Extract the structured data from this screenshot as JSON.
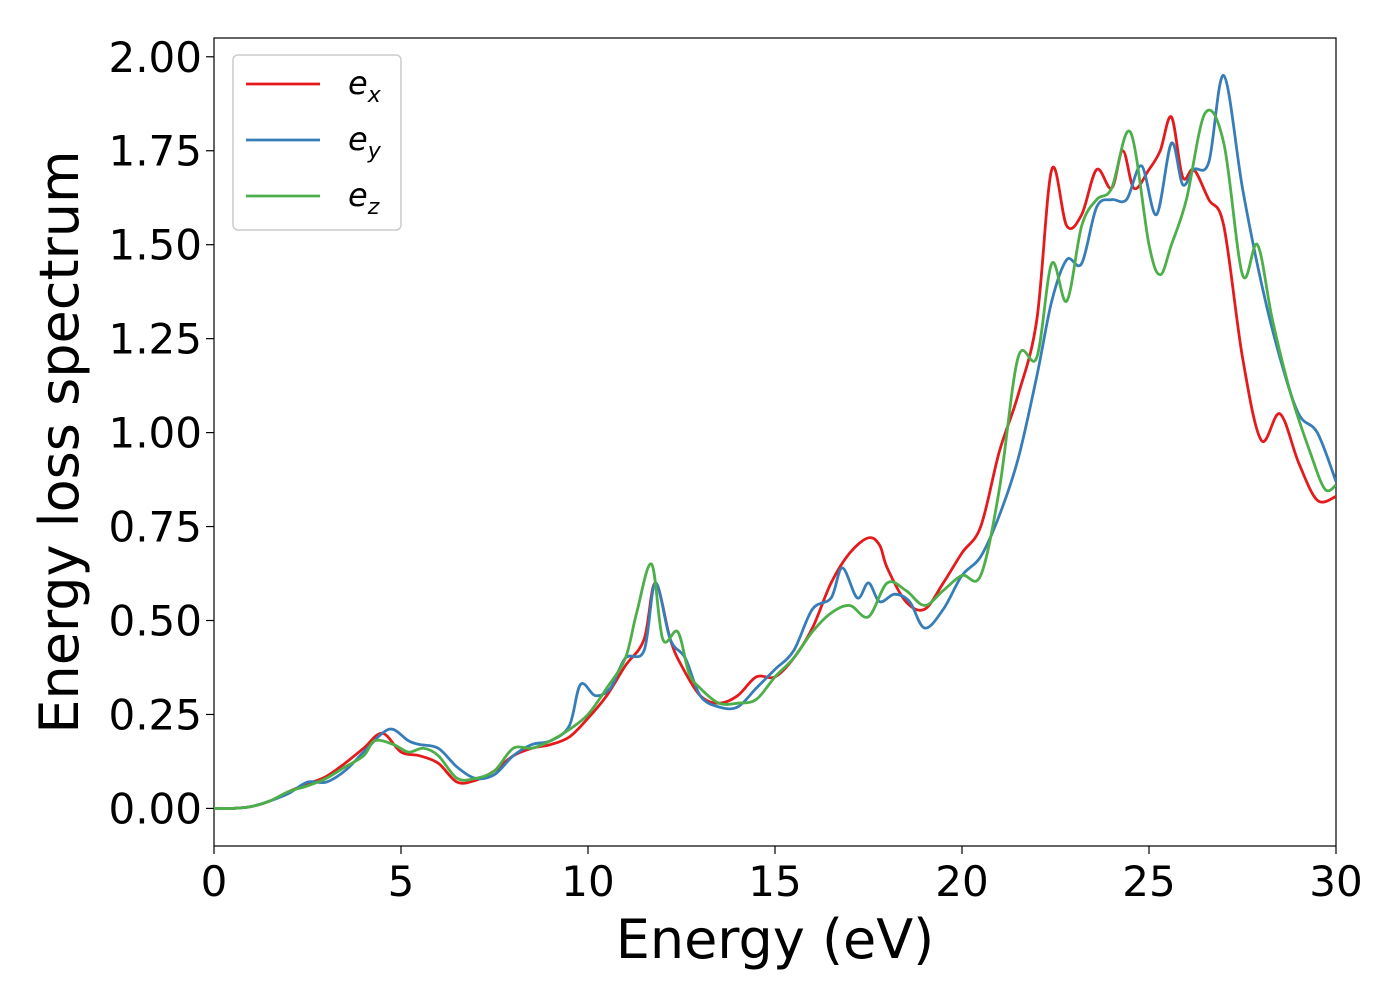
{
  "chart_data": {
    "type": "line",
    "xlabel": "Energy (eV)",
    "ylabel": "Energy loss spectrum",
    "xlim": [
      0,
      30
    ],
    "ylim": [
      -0.1,
      2.05
    ],
    "xticks": [
      0,
      5,
      10,
      15,
      20,
      25,
      30
    ],
    "xtick_labels": [
      "0",
      "5",
      "10",
      "15",
      "20",
      "25",
      "30"
    ],
    "yticks": [
      0.0,
      0.25,
      0.5,
      0.75,
      1.0,
      1.25,
      1.5,
      1.75,
      2.0
    ],
    "ytick_labels": [
      "0.00",
      "0.25",
      "0.50",
      "0.75",
      "1.00",
      "1.25",
      "1.50",
      "1.75",
      "2.00"
    ],
    "grid": false,
    "legend_position": "top-left",
    "series": [
      {
        "name": "e_x",
        "legend_base": "e",
        "legend_sub": "x",
        "color": "#e41a1c",
        "x": [
          0,
          0.5,
          1,
          1.5,
          2,
          2.5,
          3,
          3.5,
          4,
          4.5,
          5,
          5.5,
          6,
          6.5,
          7,
          7.5,
          8,
          8.5,
          9,
          9.5,
          10,
          10.5,
          11,
          11.5,
          11.8,
          12.2,
          12.5,
          13,
          13.5,
          14,
          14.5,
          15,
          15.5,
          16,
          16.5,
          17,
          17.5,
          17.8,
          18,
          18.5,
          19,
          19.5,
          20,
          20.5,
          21,
          21.5,
          22,
          22.4,
          22.8,
          23.2,
          23.6,
          24,
          24.3,
          24.6,
          25,
          25.3,
          25.6,
          25.9,
          26.2,
          26.6,
          27,
          27.5,
          28,
          28.5,
          29,
          29.5,
          30
        ],
        "y": [
          0,
          0,
          0.005,
          0.02,
          0.045,
          0.065,
          0.085,
          0.12,
          0.16,
          0.2,
          0.15,
          0.14,
          0.12,
          0.07,
          0.075,
          0.1,
          0.14,
          0.16,
          0.17,
          0.19,
          0.24,
          0.3,
          0.38,
          0.45,
          0.6,
          0.45,
          0.38,
          0.3,
          0.28,
          0.3,
          0.35,
          0.35,
          0.4,
          0.48,
          0.6,
          0.68,
          0.72,
          0.7,
          0.64,
          0.55,
          0.53,
          0.6,
          0.68,
          0.75,
          0.95,
          1.1,
          1.3,
          1.7,
          1.55,
          1.58,
          1.7,
          1.65,
          1.75,
          1.65,
          1.7,
          1.75,
          1.84,
          1.68,
          1.7,
          1.62,
          1.55,
          1.2,
          0.98,
          1.05,
          0.92,
          0.82,
          0.83
        ]
      },
      {
        "name": "e_y",
        "legend_base": "e",
        "legend_sub": "y",
        "color": "#377eb8",
        "x": [
          0,
          0.5,
          1,
          1.5,
          2,
          2.5,
          3,
          3.5,
          4,
          4.5,
          4.8,
          5.2,
          5.5,
          6,
          6.5,
          7,
          7.5,
          8,
          8.5,
          9,
          9.5,
          9.8,
          10.2,
          10.6,
          11,
          11.5,
          11.8,
          12.2,
          12.6,
          13,
          13.5,
          14,
          14.5,
          15,
          15.5,
          16,
          16.5,
          16.8,
          17.2,
          17.5,
          17.8,
          18.2,
          18.6,
          19,
          19.5,
          20,
          20.5,
          21,
          21.5,
          22,
          22.4,
          22.8,
          23.2,
          23.6,
          24,
          24.4,
          24.8,
          25.2,
          25.6,
          25.9,
          26.2,
          26.6,
          27,
          27.5,
          28,
          28.5,
          29,
          29.5,
          30
        ],
        "y": [
          0,
          0,
          0.005,
          0.02,
          0.04,
          0.07,
          0.07,
          0.1,
          0.15,
          0.2,
          0.21,
          0.18,
          0.17,
          0.16,
          0.11,
          0.08,
          0.09,
          0.14,
          0.17,
          0.18,
          0.22,
          0.33,
          0.3,
          0.32,
          0.4,
          0.42,
          0.6,
          0.45,
          0.4,
          0.3,
          0.27,
          0.27,
          0.32,
          0.37,
          0.42,
          0.53,
          0.56,
          0.64,
          0.56,
          0.6,
          0.55,
          0.57,
          0.55,
          0.48,
          0.53,
          0.62,
          0.67,
          0.78,
          0.93,
          1.15,
          1.35,
          1.46,
          1.45,
          1.6,
          1.62,
          1.62,
          1.71,
          1.58,
          1.77,
          1.66,
          1.7,
          1.72,
          1.95,
          1.65,
          1.4,
          1.2,
          1.05,
          1.0,
          0.87
        ]
      },
      {
        "name": "e_z",
        "legend_base": "e",
        "legend_sub": "z",
        "color": "#4daf4a",
        "x": [
          0,
          0.5,
          1,
          1.5,
          2,
          2.5,
          3,
          3.5,
          4,
          4.3,
          4.8,
          5.2,
          5.6,
          6,
          6.5,
          7,
          7.5,
          8,
          8.5,
          9,
          9.5,
          10,
          10.5,
          11,
          11.3,
          11.7,
          12,
          12.4,
          12.7,
          13,
          13.5,
          14,
          14.5,
          15,
          15.5,
          16,
          16.5,
          17,
          17.5,
          18,
          18.5,
          19,
          19.5,
          20,
          20.5,
          21,
          21.5,
          22,
          22.4,
          22.8,
          23.2,
          23.6,
          24,
          24.5,
          25,
          25.3,
          25.6,
          26,
          26.5,
          27,
          27.5,
          27.9,
          28.3,
          28.8,
          29.3,
          29.7,
          30
        ],
        "y": [
          0,
          0,
          0.005,
          0.02,
          0.045,
          0.06,
          0.08,
          0.11,
          0.14,
          0.18,
          0.17,
          0.15,
          0.16,
          0.14,
          0.08,
          0.08,
          0.1,
          0.16,
          0.16,
          0.18,
          0.21,
          0.25,
          0.32,
          0.4,
          0.52,
          0.65,
          0.45,
          0.47,
          0.36,
          0.32,
          0.28,
          0.28,
          0.29,
          0.35,
          0.4,
          0.47,
          0.52,
          0.54,
          0.51,
          0.6,
          0.58,
          0.54,
          0.58,
          0.62,
          0.62,
          0.85,
          1.2,
          1.2,
          1.45,
          1.35,
          1.55,
          1.62,
          1.65,
          1.8,
          1.5,
          1.42,
          1.5,
          1.62,
          1.85,
          1.77,
          1.42,
          1.5,
          1.3,
          1.1,
          0.95,
          0.85,
          0.86
        ]
      }
    ]
  }
}
